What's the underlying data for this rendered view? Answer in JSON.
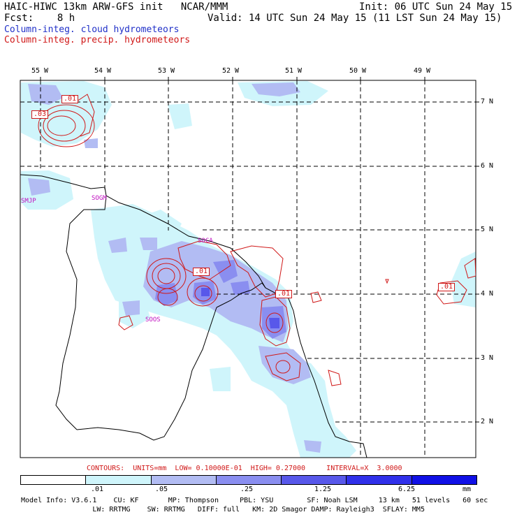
{
  "header": {
    "title": "HAIC-HIWC 13km ARW-GFS init   NCAR/MMM",
    "fcst": "Fcst:    8 h",
    "init": "Init: 06 UTC Sun 24 May 15",
    "valid": "Valid: 14 UTC Sun 24 May 15 (11 LST Sun 24 May 15)"
  },
  "legend": {
    "cloud": "Column-integ. cloud hydrometeors",
    "precip": "Column-integ. precip. hydrometeors",
    "cloud_color": "#2030c8",
    "precip_color": "#d01818"
  },
  "map": {
    "lon_labels": [
      "55 W",
      "54 W",
      "53 W",
      "52 W",
      "51 W",
      "50 W",
      "49 W"
    ],
    "lat_labels": [
      "7 N",
      "6 N",
      "5 N",
      "4 N",
      "3 N",
      "2 N"
    ],
    "stations": [
      "SMJP",
      "SOGM",
      "SOCA",
      "SOOS"
    ],
    "contour_labels": [
      ".01",
      ".03",
      ".01",
      ".01",
      ".01"
    ]
  },
  "contours_line": "CONTOURS:  UNITS=mm  LOW= 0.10000E-01  HIGH= 0.27000     INTERVAL=X  3.0000",
  "colorbar": {
    "ticks": [
      ".01",
      ".05",
      ".25",
      "1.25",
      "6.25"
    ],
    "unit": "mm",
    "colors": [
      "#ffffff",
      "#cff5fb",
      "#b2bcf3",
      "#8a8ef0",
      "#5858ea",
      "#3030ea",
      "#1010e6"
    ]
  },
  "model_info": {
    "line1": "Model Info: V3.6.1    CU: KF       MP: Thompson     PBL: YSU        SF: Noah LSM     13 km   51 levels   60 sec",
    "line2": "                 LW: RRTMG    SW: RRTMG   DIFF: full   KM: 2D Smagor DAMP: Rayleigh3  SFLAY: MM5"
  }
}
